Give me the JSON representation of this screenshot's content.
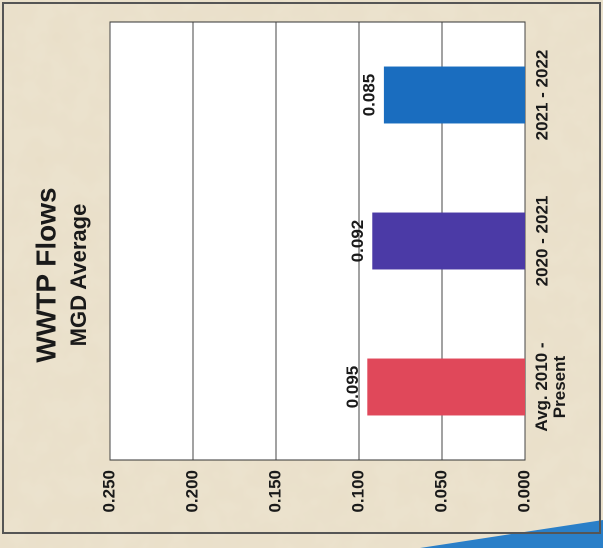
{
  "chart_data": {
    "type": "bar",
    "title": "WWTP Flows",
    "subtitle": "MGD Average",
    "categories": [
      "Avg. 2010 - Present",
      "2020 - 2021",
      "2021 - 2022"
    ],
    "values": [
      0.095,
      0.092,
      0.085
    ],
    "colors": [
      "#e0485a",
      "#4b3aa6",
      "#1a6dbf"
    ],
    "ylim": [
      0,
      0.25
    ],
    "yticks": [
      {
        "value": 0,
        "label": "0.000"
      },
      {
        "value": 0.05,
        "label": "0.050"
      },
      {
        "value": 0.1,
        "label": "0.100"
      },
      {
        "value": 0.15,
        "label": "0.150"
      },
      {
        "value": 0.2,
        "label": "0.200"
      },
      {
        "value": 0.25,
        "label": "0.250"
      }
    ],
    "grid": true
  }
}
